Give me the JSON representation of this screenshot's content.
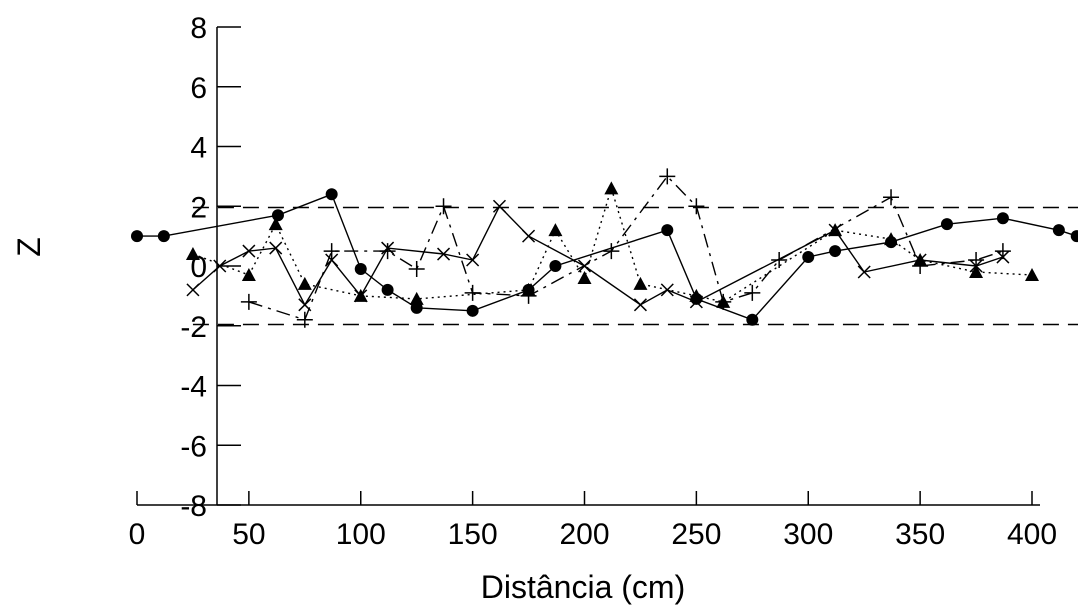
{
  "chart_data": {
    "type": "line",
    "xlabel": "Distância (cm)",
    "ylabel": "Z",
    "xlim": [
      0,
      420
    ],
    "ylim": [
      -8,
      8
    ],
    "xticks": [
      0,
      50,
      100,
      150,
      200,
      250,
      300,
      350,
      400
    ],
    "yticks": [
      -8,
      -6,
      -4,
      -2,
      0,
      2,
      4,
      6,
      8
    ],
    "reference_lines": [
      1.96,
      -1.96
    ],
    "grid": false,
    "legend": "none",
    "series": [
      {
        "marker": "circle",
        "style": "solid",
        "points": [
          [
            0,
            1.0
          ],
          [
            12,
            1.0
          ],
          [
            63,
            1.7
          ],
          [
            87,
            2.4
          ],
          [
            100,
            -0.1
          ],
          [
            112,
            -0.8
          ],
          [
            125,
            -1.4
          ],
          [
            150,
            -1.5
          ],
          [
            175,
            -0.8
          ],
          [
            187,
            0.0
          ],
          [
            237,
            1.2
          ],
          [
            250,
            -1.1
          ],
          [
            275,
            -1.8
          ],
          [
            300,
            0.3
          ],
          [
            312,
            0.5
          ],
          [
            337,
            0.8
          ],
          [
            362,
            1.4
          ],
          [
            387,
            1.6
          ],
          [
            412,
            1.2
          ],
          [
            420,
            1.0
          ]
        ]
      },
      {
        "marker": "triangle",
        "style": "dotted",
        "points": [
          [
            25,
            0.4
          ],
          [
            50,
            -0.3
          ],
          [
            62,
            1.4
          ],
          [
            75,
            -0.6
          ],
          [
            100,
            -1.0
          ],
          [
            125,
            -1.1
          ],
          [
            175,
            -0.8
          ],
          [
            187,
            1.2
          ],
          [
            200,
            -0.4
          ],
          [
            212,
            2.6
          ],
          [
            225,
            -0.6
          ],
          [
            250,
            -1.0
          ],
          [
            262,
            -1.2
          ],
          [
            312,
            1.2
          ],
          [
            337,
            0.9
          ],
          [
            350,
            0.2
          ],
          [
            375,
            -0.2
          ],
          [
            400,
            -0.3
          ]
        ]
      },
      {
        "marker": "cross",
        "style": "solid",
        "points": [
          [
            25,
            -0.8
          ],
          [
            37,
            0.0
          ],
          [
            50,
            0.5
          ],
          [
            62,
            0.6
          ],
          [
            75,
            -1.3
          ],
          [
            87,
            0.2
          ],
          [
            100,
            -1.0
          ],
          [
            112,
            0.6
          ],
          [
            137,
            0.4
          ],
          [
            150,
            0.2
          ],
          [
            162,
            2.0
          ],
          [
            175,
            1.0
          ],
          [
            200,
            0.0
          ],
          [
            225,
            -1.3
          ],
          [
            237,
            -0.8
          ],
          [
            250,
            -1.2
          ],
          [
            312,
            1.2
          ],
          [
            325,
            -0.2
          ],
          [
            350,
            0.2
          ],
          [
            375,
            0.0
          ],
          [
            387,
            0.3
          ]
        ]
      },
      {
        "marker": "plus",
        "style": "dashdot",
        "points": [
          [
            50,
            -1.2
          ],
          [
            75,
            -1.8
          ],
          [
            87,
            0.5
          ],
          [
            112,
            0.5
          ],
          [
            125,
            -0.1
          ],
          [
            137,
            2.0
          ],
          [
            150,
            -0.9
          ],
          [
            175,
            -1.0
          ],
          [
            212,
            0.5
          ],
          [
            237,
            3.0
          ],
          [
            250,
            2.0
          ],
          [
            262,
            -1.2
          ],
          [
            275,
            -0.9
          ],
          [
            287,
            0.2
          ],
          [
            337,
            2.3
          ],
          [
            350,
            0.0
          ],
          [
            375,
            0.2
          ],
          [
            387,
            0.5
          ]
        ]
      }
    ]
  }
}
